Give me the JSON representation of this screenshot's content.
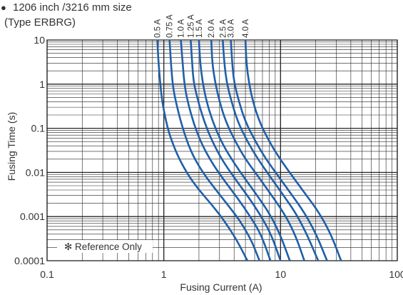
{
  "header": {
    "bullet": "●",
    "title": "1206 inch /3216 mm size",
    "subtitle": "(Type ERBRG)"
  },
  "chart_data": {
    "type": "line",
    "xlabel": "Fusing Current (A)",
    "ylabel": "Fusing Time (s)",
    "x_scale": "log",
    "y_scale": "log",
    "xlim": [
      0.1,
      100
    ],
    "ylim": [
      0.0001,
      10
    ],
    "x_ticks": [
      "0.1",
      "1",
      "10",
      "100"
    ],
    "y_ticks": [
      "0.0001",
      "0.001",
      "0.01",
      "0.1",
      "1",
      "10"
    ],
    "grid": true,
    "annotation": "✻ Reference Only",
    "line_color": "#1f5fa8",
    "series": [
      {
        "name": "0.5 A",
        "points": [
          [
            0.88,
            10
          ],
          [
            0.9,
            3
          ],
          [
            0.95,
            0.6
          ],
          [
            1.0,
            0.25
          ],
          [
            1.1,
            0.08
          ],
          [
            1.3,
            0.025
          ],
          [
            1.6,
            0.009
          ],
          [
            2.0,
            0.004
          ],
          [
            2.6,
            0.0018
          ],
          [
            3.3,
            0.0008
          ],
          [
            4.2,
            0.0003
          ],
          [
            5.2,
            0.0001
          ]
        ]
      },
      {
        "name": "0.75 A",
        "points": [
          [
            1.12,
            10
          ],
          [
            1.15,
            3
          ],
          [
            1.2,
            0.8
          ],
          [
            1.3,
            0.3
          ],
          [
            1.45,
            0.1
          ],
          [
            1.7,
            0.03
          ],
          [
            2.1,
            0.011
          ],
          [
            2.7,
            0.0045
          ],
          [
            3.5,
            0.0019
          ],
          [
            4.5,
            0.0008
          ],
          [
            5.6,
            0.0003
          ],
          [
            6.6,
            0.0001
          ]
        ]
      },
      {
        "name": "1.0 A",
        "points": [
          [
            1.4,
            10
          ],
          [
            1.45,
            3
          ],
          [
            1.5,
            1
          ],
          [
            1.6,
            0.4
          ],
          [
            1.8,
            0.13
          ],
          [
            2.1,
            0.045
          ],
          [
            2.6,
            0.016
          ],
          [
            3.3,
            0.0065
          ],
          [
            4.3,
            0.0026
          ],
          [
            5.5,
            0.001
          ],
          [
            6.8,
            0.0004
          ],
          [
            8.2,
            0.0001
          ]
        ]
      },
      {
        "name": "1.25 A",
        "points": [
          [
            1.7,
            10
          ],
          [
            1.75,
            3
          ],
          [
            1.8,
            1.1
          ],
          [
            1.95,
            0.45
          ],
          [
            2.2,
            0.15
          ],
          [
            2.6,
            0.05
          ],
          [
            3.2,
            0.018
          ],
          [
            4.1,
            0.007
          ],
          [
            5.3,
            0.0028
          ],
          [
            6.7,
            0.0011
          ],
          [
            8.3,
            0.0004
          ],
          [
            10,
            0.0001
          ]
        ]
      },
      {
        "name": "1.5 A",
        "points": [
          [
            2.0,
            10
          ],
          [
            2.05,
            3
          ],
          [
            2.15,
            1.1
          ],
          [
            2.3,
            0.45
          ],
          [
            2.6,
            0.15
          ],
          [
            3.1,
            0.05
          ],
          [
            3.8,
            0.02
          ],
          [
            4.9,
            0.0075
          ],
          [
            6.3,
            0.003
          ],
          [
            8.0,
            0.0012
          ],
          [
            9.9,
            0.0004
          ],
          [
            12,
            0.0001
          ]
        ]
      },
      {
        "name": "2.0 A",
        "points": [
          [
            2.55,
            10
          ],
          [
            2.6,
            3
          ],
          [
            2.75,
            1.1
          ],
          [
            3.0,
            0.4
          ],
          [
            3.4,
            0.14
          ],
          [
            4.1,
            0.05
          ],
          [
            5.0,
            0.02
          ],
          [
            6.5,
            0.0078
          ],
          [
            8.4,
            0.003
          ],
          [
            10.7,
            0.0012
          ],
          [
            13.3,
            0.0004
          ],
          [
            16,
            0.0001
          ]
        ]
      },
      {
        "name": "2.5 A",
        "points": [
          [
            3.2,
            10
          ],
          [
            3.3,
            3
          ],
          [
            3.45,
            1.1
          ],
          [
            3.8,
            0.4
          ],
          [
            4.3,
            0.14
          ],
          [
            5.2,
            0.05
          ],
          [
            6.4,
            0.02
          ],
          [
            8.2,
            0.0078
          ],
          [
            10.6,
            0.003
          ],
          [
            13.5,
            0.0012
          ],
          [
            16.8,
            0.0004
          ],
          [
            21,
            0.0001
          ]
        ]
      },
      {
        "name": "3.0 A",
        "points": [
          [
            3.75,
            10
          ],
          [
            3.85,
            3
          ],
          [
            4.0,
            1.1
          ],
          [
            4.4,
            0.4
          ],
          [
            5.0,
            0.14
          ],
          [
            6.1,
            0.05
          ],
          [
            7.5,
            0.02
          ],
          [
            9.7,
            0.0078
          ],
          [
            12.6,
            0.003
          ],
          [
            16.1,
            0.0012
          ],
          [
            20.2,
            0.0004
          ],
          [
            25,
            0.0001
          ]
        ]
      },
      {
        "name": "4.0 A",
        "points": [
          [
            5.0,
            10
          ],
          [
            5.1,
            3
          ],
          [
            5.35,
            1.1
          ],
          [
            5.8,
            0.4
          ],
          [
            6.6,
            0.14
          ],
          [
            8.0,
            0.05
          ],
          [
            9.9,
            0.02
          ],
          [
            12.8,
            0.0078
          ],
          [
            16.7,
            0.003
          ],
          [
            21.5,
            0.0012
          ],
          [
            27,
            0.0004
          ],
          [
            33,
            0.0001
          ]
        ]
      }
    ]
  }
}
